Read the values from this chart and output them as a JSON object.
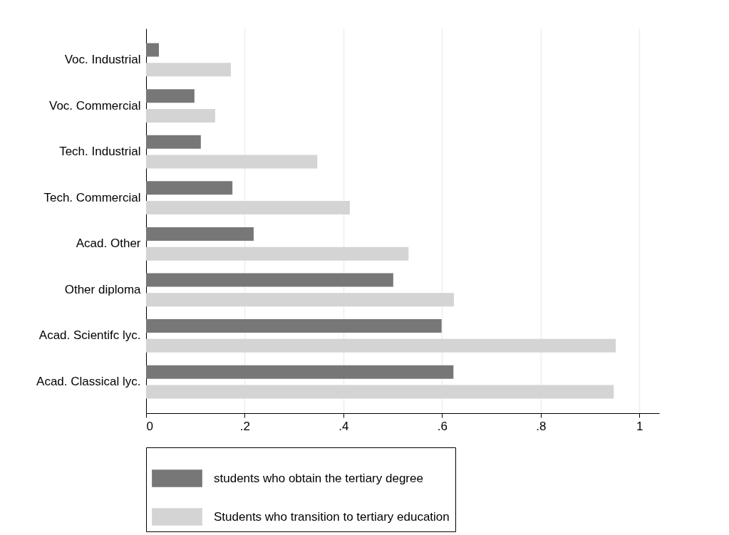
{
  "chart_data": {
    "type": "bar",
    "orientation": "horizontal",
    "categories": [
      "Voc. Industrial",
      "Voc. Commercial",
      "Tech. Industrial",
      "Tech. Commercial",
      "Acad. Other",
      "Other diploma",
      "Acad. Scientifc lyc.",
      "Acad. Classical lyc."
    ],
    "series": [
      {
        "name": "students who obtain the tertiary degree",
        "color": "#777777",
        "values": [
          0.026,
          0.098,
          0.111,
          0.175,
          0.218,
          0.501,
          0.599,
          0.623
        ]
      },
      {
        "name": "Students who transition to tertiary education",
        "color": "#d4d4d4",
        "values": [
          0.172,
          0.14,
          0.347,
          0.413,
          0.532,
          0.624,
          0.952,
          0.948
        ]
      }
    ],
    "xlim": [
      0,
      1.04
    ],
    "xticks": [
      0,
      {
        "value": 0.2,
        "label": ".2"
      },
      {
        "value": 0.4,
        "label": ".4"
      },
      {
        "value": 0.6,
        "label": ".6"
      },
      {
        "value": 0.8,
        "label": ".8"
      },
      1
    ],
    "grid": "x",
    "legend": "bottom"
  }
}
